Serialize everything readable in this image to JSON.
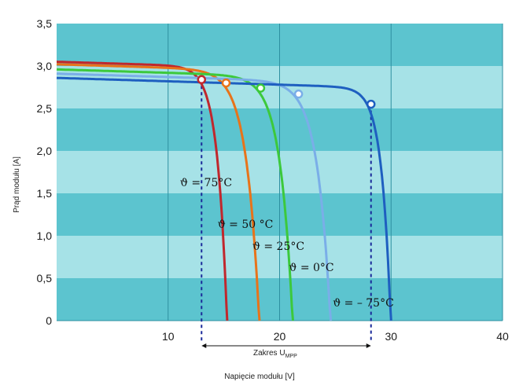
{
  "chart_data": {
    "type": "line",
    "xlabel": "Napięcie modułu  [V]",
    "ylabel": "Prąd modułu  [A]",
    "xlim": [
      0,
      40
    ],
    "ylim": [
      0,
      3.5
    ],
    "x_ticks": [
      "10",
      "20",
      "30",
      "40"
    ],
    "y_ticks": [
      "0",
      "0,5",
      "1,0",
      "1,5",
      "2,0",
      "2,5",
      "3,0",
      "3,5"
    ],
    "grid": true,
    "series": [
      {
        "name": "ϑ = 75°C",
        "color": "#c0272d",
        "isc": 3.05,
        "voc": 15.3,
        "mpp": [
          13.0,
          2.84
        ],
        "label": "ϑ = 75°C"
      },
      {
        "name": "ϑ = 50 °C",
        "color": "#e8731a",
        "isc": 3.02,
        "voc": 18.2,
        "mpp": [
          15.2,
          2.8
        ],
        "label": "ϑ = 50 °C"
      },
      {
        "name": "ϑ = 25°C",
        "color": "#3cc93c",
        "isc": 2.96,
        "voc": 21.2,
        "mpp": [
          18.3,
          2.74
        ],
        "label": "ϑ = 25°C"
      },
      {
        "name": "ϑ = 0°C",
        "color": "#7aaee8",
        "isc": 2.91,
        "voc": 24.6,
        "mpp": [
          21.7,
          2.67
        ],
        "label": "ϑ = 0°C"
      },
      {
        "name": "ϑ = – 75°C",
        "color": "#1e5fc0",
        "isc": 2.86,
        "voc": 30.0,
        "mpp": [
          28.2,
          2.55
        ],
        "label": "ϑ = – 75°C"
      }
    ],
    "annotation": {
      "range_from": 13.0,
      "range_to": 28.2,
      "range_label": "Zakres U",
      "range_label_sub": "MPP"
    },
    "colors": {
      "band_dark": "#5cc4cf",
      "band_light": "#a6e2e7",
      "grid": "#2e8fa0",
      "range_line": "#1a2a9a"
    }
  }
}
